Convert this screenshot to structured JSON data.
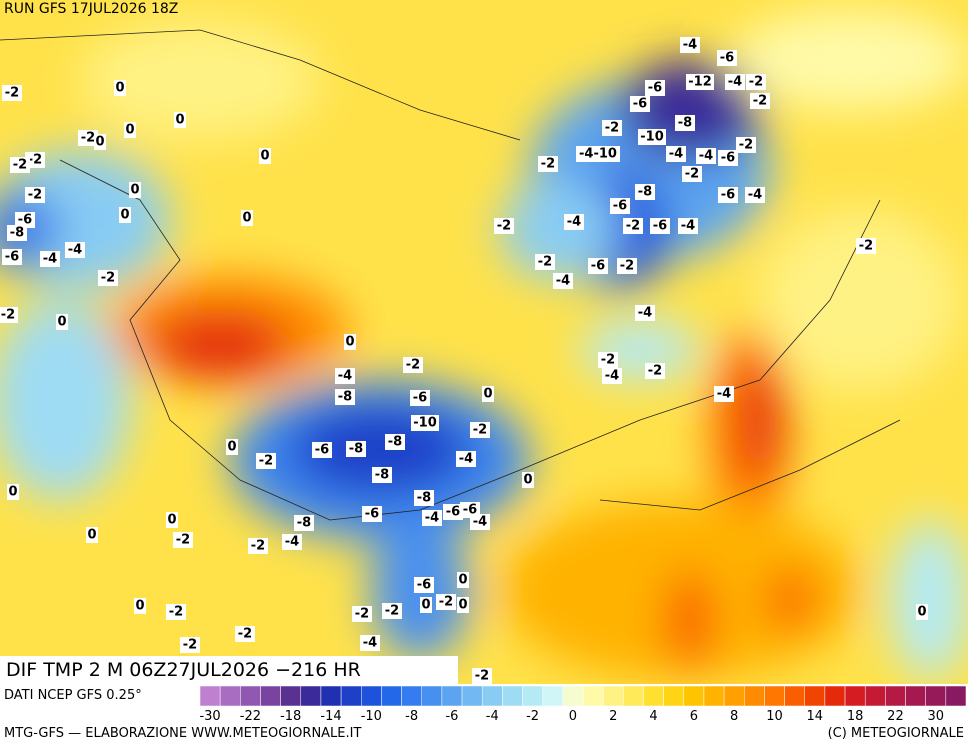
{
  "header": {
    "run": "RUN GFS 17JUL2026 18Z"
  },
  "map": {
    "title": "DIF TMP 2 M 06Z27JUL2026 −216 HR",
    "labels": [
      "-2",
      "0",
      "-2",
      "0",
      "0",
      "0",
      "0",
      "-2",
      "-2",
      "-2",
      "0",
      "-6",
      "-8",
      "0",
      "0",
      "-4",
      "-4",
      "-6",
      "-2",
      "0",
      "-2",
      "0",
      "-2",
      "-4",
      "-8",
      "-6",
      "0",
      "-10",
      "-2",
      "-6",
      "-8",
      "-8",
      "-4",
      "0",
      "-2",
      "-8",
      "0",
      "0",
      "-8",
      "-6",
      "-4",
      "-6",
      "-6",
      "-4",
      "-8",
      "0",
      "0",
      "-2",
      "-2",
      "-4",
      "-6",
      "0",
      "0",
      "-2",
      "0",
      "0",
      "-2",
      "-2",
      "-2",
      "-2",
      "-2",
      "-4",
      "-2",
      "-2",
      "-2",
      "-4",
      "-2",
      "-4",
      "-6",
      "-2",
      "-2",
      "-6",
      "-4",
      "-6",
      "-8",
      "-4-10",
      "-2",
      "-10",
      "-4",
      "-4",
      "-6",
      "-2",
      "-2",
      "-6",
      "-4",
      "-8",
      "-12",
      "-4",
      "-2",
      "-2",
      "-6",
      "-6",
      "-6",
      "-4",
      "-2",
      "-4",
      "-2",
      "-4",
      "-2",
      "-4",
      "0"
    ]
  },
  "colorbar": {
    "source": "DATI NCEP GFS 0.25°",
    "colors": [
      "#c080d0",
      "#a86cc0",
      "#9058b0",
      "#7844a0",
      "#5a3090",
      "#3a2a9a",
      "#2030b0",
      "#1e40c8",
      "#1e52dc",
      "#2468ea",
      "#347cf0",
      "#4890f0",
      "#5ca4f0",
      "#72b8f2",
      "#88ccf4",
      "#9edcf4",
      "#b4eaf4",
      "#d0f6f8",
      "#f4fcd0",
      "#fffaa8",
      "#fff284",
      "#ffea5a",
      "#ffe030",
      "#ffd414",
      "#ffc400",
      "#ffb200",
      "#ffa000",
      "#ff8c00",
      "#ff7600",
      "#fa5e00",
      "#f04400",
      "#e42a0a",
      "#d41c22",
      "#c41a34",
      "#b41a44",
      "#a41a50",
      "#961a5a",
      "#881a62"
    ],
    "ticks": [
      -30,
      -22,
      -18,
      -14,
      -10,
      -8,
      -6,
      -4,
      -2,
      0,
      2,
      4,
      6,
      8,
      10,
      14,
      18,
      22,
      30
    ]
  },
  "footer": {
    "credit": "MTG-GFS — ELABORAZIONE WWW.METEOGIORNALE.IT",
    "copyright": "(C) METEOGIORNALE"
  }
}
